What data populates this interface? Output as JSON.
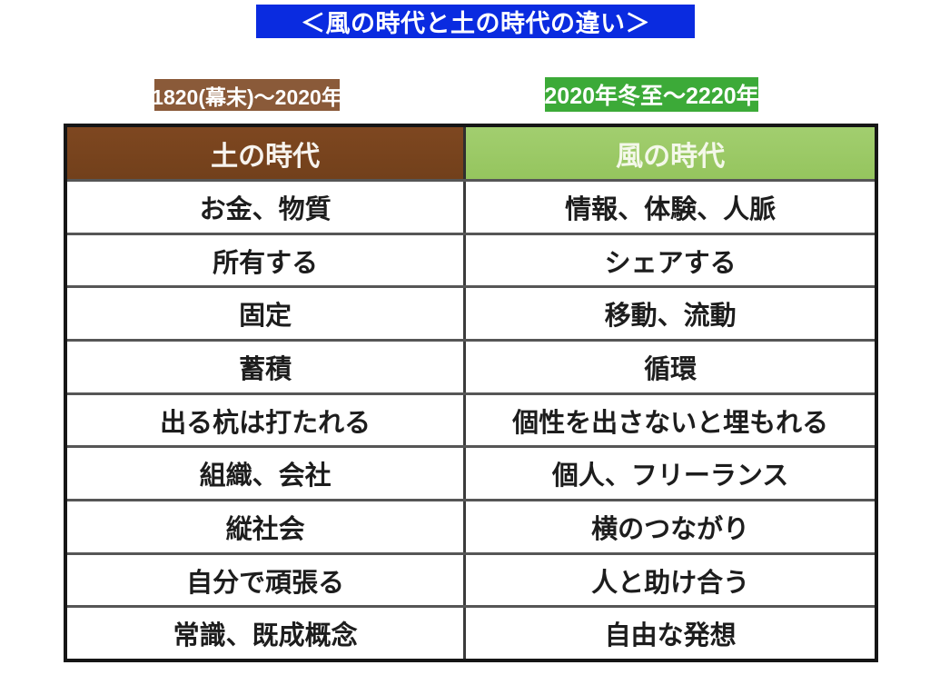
{
  "banner": {
    "title": "＜風の時代と土の時代の違い＞",
    "bg_color": "#0a2be0",
    "text_color": "#ffffff"
  },
  "era_labels": {
    "earth_period": "1820(幕末)〜2020年",
    "earth_bg_color": "#8a5a39",
    "wind_period": "2020年冬至〜2220年",
    "wind_bg_color": "#3caa38"
  },
  "table": {
    "headers": {
      "earth": {
        "label": "土の時代",
        "bg_color": "#7a431d"
      },
      "wind": {
        "label": "風の時代",
        "bg_color": "#9cc968"
      }
    },
    "rows": [
      {
        "earth": "お金、物質",
        "wind": "情報、体験、人脈"
      },
      {
        "earth": "所有する",
        "wind": "シェアする"
      },
      {
        "earth": "固定",
        "wind": "移動、流動"
      },
      {
        "earth": "蓄積",
        "wind": "循環"
      },
      {
        "earth": "出る杭は打たれる",
        "wind": "個性を出さないと埋もれる"
      },
      {
        "earth": "組織、会社",
        "wind": "個人、フリーランス"
      },
      {
        "earth": "縦社会",
        "wind": "横のつながり"
      },
      {
        "earth": "自分で頑張る",
        "wind": "人と助け合う"
      },
      {
        "earth": "常識、既成概念",
        "wind": "自由な発想"
      }
    ]
  }
}
